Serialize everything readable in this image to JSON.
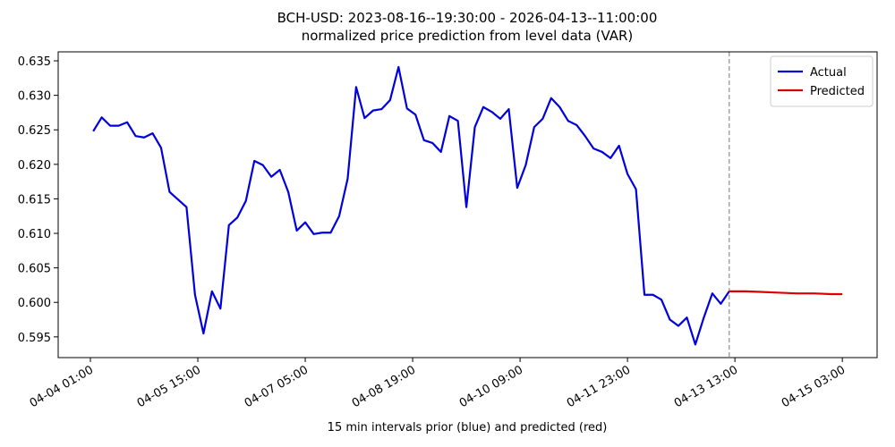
{
  "chart_data": {
    "type": "line",
    "title": "BCH-USD: 2023-08-16--19:30:00 - 2026-04-13--11:00:00",
    "subtitle": "normalized price prediction from level data (VAR)",
    "x_label": "15 min intervals prior (blue) and predicted (red)",
    "xlim": [
      "04-03 13:36",
      "04-15 15:18"
    ],
    "xticks": [
      "04-04 01:00",
      "04-05 15:00",
      "04-07 05:00",
      "04-08 19:00",
      "04-10 09:00",
      "04-11 23:00",
      "04-13 13:00",
      "04-15 03:00"
    ],
    "ylim": [
      0.592,
      0.6363
    ],
    "yticks": [
      0.595,
      {
        "value": 0.6,
        "label": "0.600"
      },
      0.605,
      {
        "value": 0.61,
        "label": "0.610"
      },
      0.615,
      {
        "value": 0.62,
        "label": "0.620"
      },
      0.625,
      {
        "value": 0.63,
        "label": "0.630"
      },
      0.635
    ],
    "vline": "04-13 11:00",
    "legend": "upper right",
    "series": [
      {
        "name": "Actual",
        "color": "#0000dd",
        "x": [
          "04-04 02:00",
          "04-04 05:00",
          "04-04 08:00",
          "04-04 11:00",
          "04-04 14:00",
          "04-04 17:00",
          "04-04 20:00",
          "04-04 23:00",
          "04-05 02:00",
          "04-05 05:00",
          "04-05 08:00",
          "04-05 11:00",
          "04-05 14:00",
          "04-05 17:00",
          "04-05 20:00",
          "04-05 23:00",
          "04-06 02:00",
          "04-06 05:00",
          "04-06 08:00",
          "04-06 11:00",
          "04-06 14:00",
          "04-06 17:00",
          "04-06 20:00",
          "04-06 23:00",
          "04-07 02:00",
          "04-07 05:00",
          "04-07 08:00",
          "04-07 11:00",
          "04-07 14:00",
          "04-07 17:00",
          "04-07 20:00",
          "04-07 23:00",
          "04-08 02:00",
          "04-08 05:00",
          "04-08 08:00",
          "04-08 11:00",
          "04-08 14:00",
          "04-08 17:00",
          "04-08 20:00",
          "04-08 23:00",
          "04-09 02:00",
          "04-09 05:00",
          "04-09 08:00",
          "04-09 11:00",
          "04-09 14:00",
          "04-09 17:00",
          "04-09 20:00",
          "04-09 23:00",
          "04-10 02:00",
          "04-10 05:00",
          "04-10 08:00",
          "04-10 11:00",
          "04-10 14:00",
          "04-10 17:00",
          "04-10 20:00",
          "04-10 23:00",
          "04-11 02:00",
          "04-11 05:00",
          "04-11 08:00",
          "04-11 11:00",
          "04-11 14:00",
          "04-11 17:00",
          "04-11 20:00",
          "04-11 23:00",
          "04-12 02:00",
          "04-12 05:00",
          "04-12 08:00",
          "04-12 11:00",
          "04-12 14:00",
          "04-12 17:00",
          "04-12 20:00",
          "04-12 23:00",
          "04-13 02:00",
          "04-13 05:00",
          "04-13 08:00",
          "04-13 11:00"
        ],
        "values": [
          0.6248,
          0.6268,
          0.6256,
          0.6256,
          0.6261,
          0.6241,
          0.6239,
          0.6245,
          0.6224,
          0.616,
          0.6149,
          0.6138,
          0.6011,
          0.5955,
          0.6016,
          0.5991,
          0.6112,
          0.6123,
          0.6147,
          0.6205,
          0.6199,
          0.6182,
          0.6192,
          0.616,
          0.6104,
          0.6116,
          0.6099,
          0.6101,
          0.6101,
          0.6125,
          0.6179,
          0.6312,
          0.6267,
          0.6278,
          0.628,
          0.6293,
          0.6341,
          0.6281,
          0.6272,
          0.6235,
          0.6231,
          0.6218,
          0.627,
          0.6263,
          0.6138,
          0.6254,
          0.6283,
          0.6276,
          0.6266,
          0.628,
          0.6166,
          0.6199,
          0.6254,
          0.6266,
          0.6296,
          0.6283,
          0.6263,
          0.6257,
          0.6241,
          0.6223,
          0.6218,
          0.6209,
          0.6227,
          0.6186,
          0.6164,
          0.6011,
          0.6011,
          0.6004,
          0.5975,
          0.5966,
          0.5978,
          0.5939,
          0.5978,
          0.6013,
          0.5998,
          0.6016
        ]
      },
      {
        "name": "Predicted",
        "color": "#dd0000",
        "x": [
          "04-13 11:00",
          "04-13 17:00",
          "04-13 23:00",
          "04-14 05:00",
          "04-14 11:00",
          "04-14 17:00",
          "04-14 23:00",
          "04-15 03:00"
        ],
        "values": [
          0.6016,
          0.6016,
          0.6015,
          0.6014,
          0.6013,
          0.6013,
          0.6012,
          0.6012
        ]
      }
    ]
  }
}
